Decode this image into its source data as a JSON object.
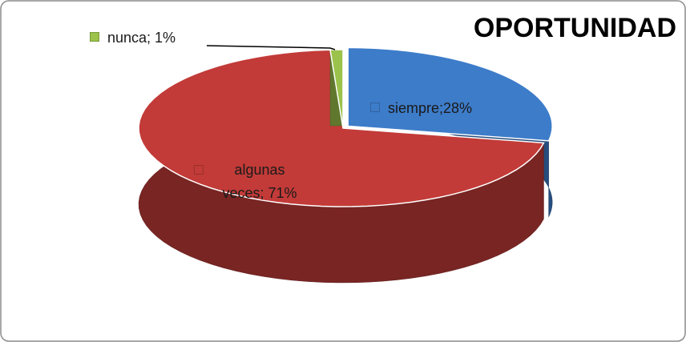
{
  "chart_data": {
    "type": "pie",
    "title": "OPORTUNIDAD",
    "values": [
      28,
      71,
      1
    ],
    "value_labels": [
      "siempre;28%",
      "algunas veces; 71%",
      "nunca; 1%"
    ],
    "colors": [
      "#3d7cc9",
      "#c23b38",
      "#9bc24a"
    ],
    "three_d": true
  }
}
